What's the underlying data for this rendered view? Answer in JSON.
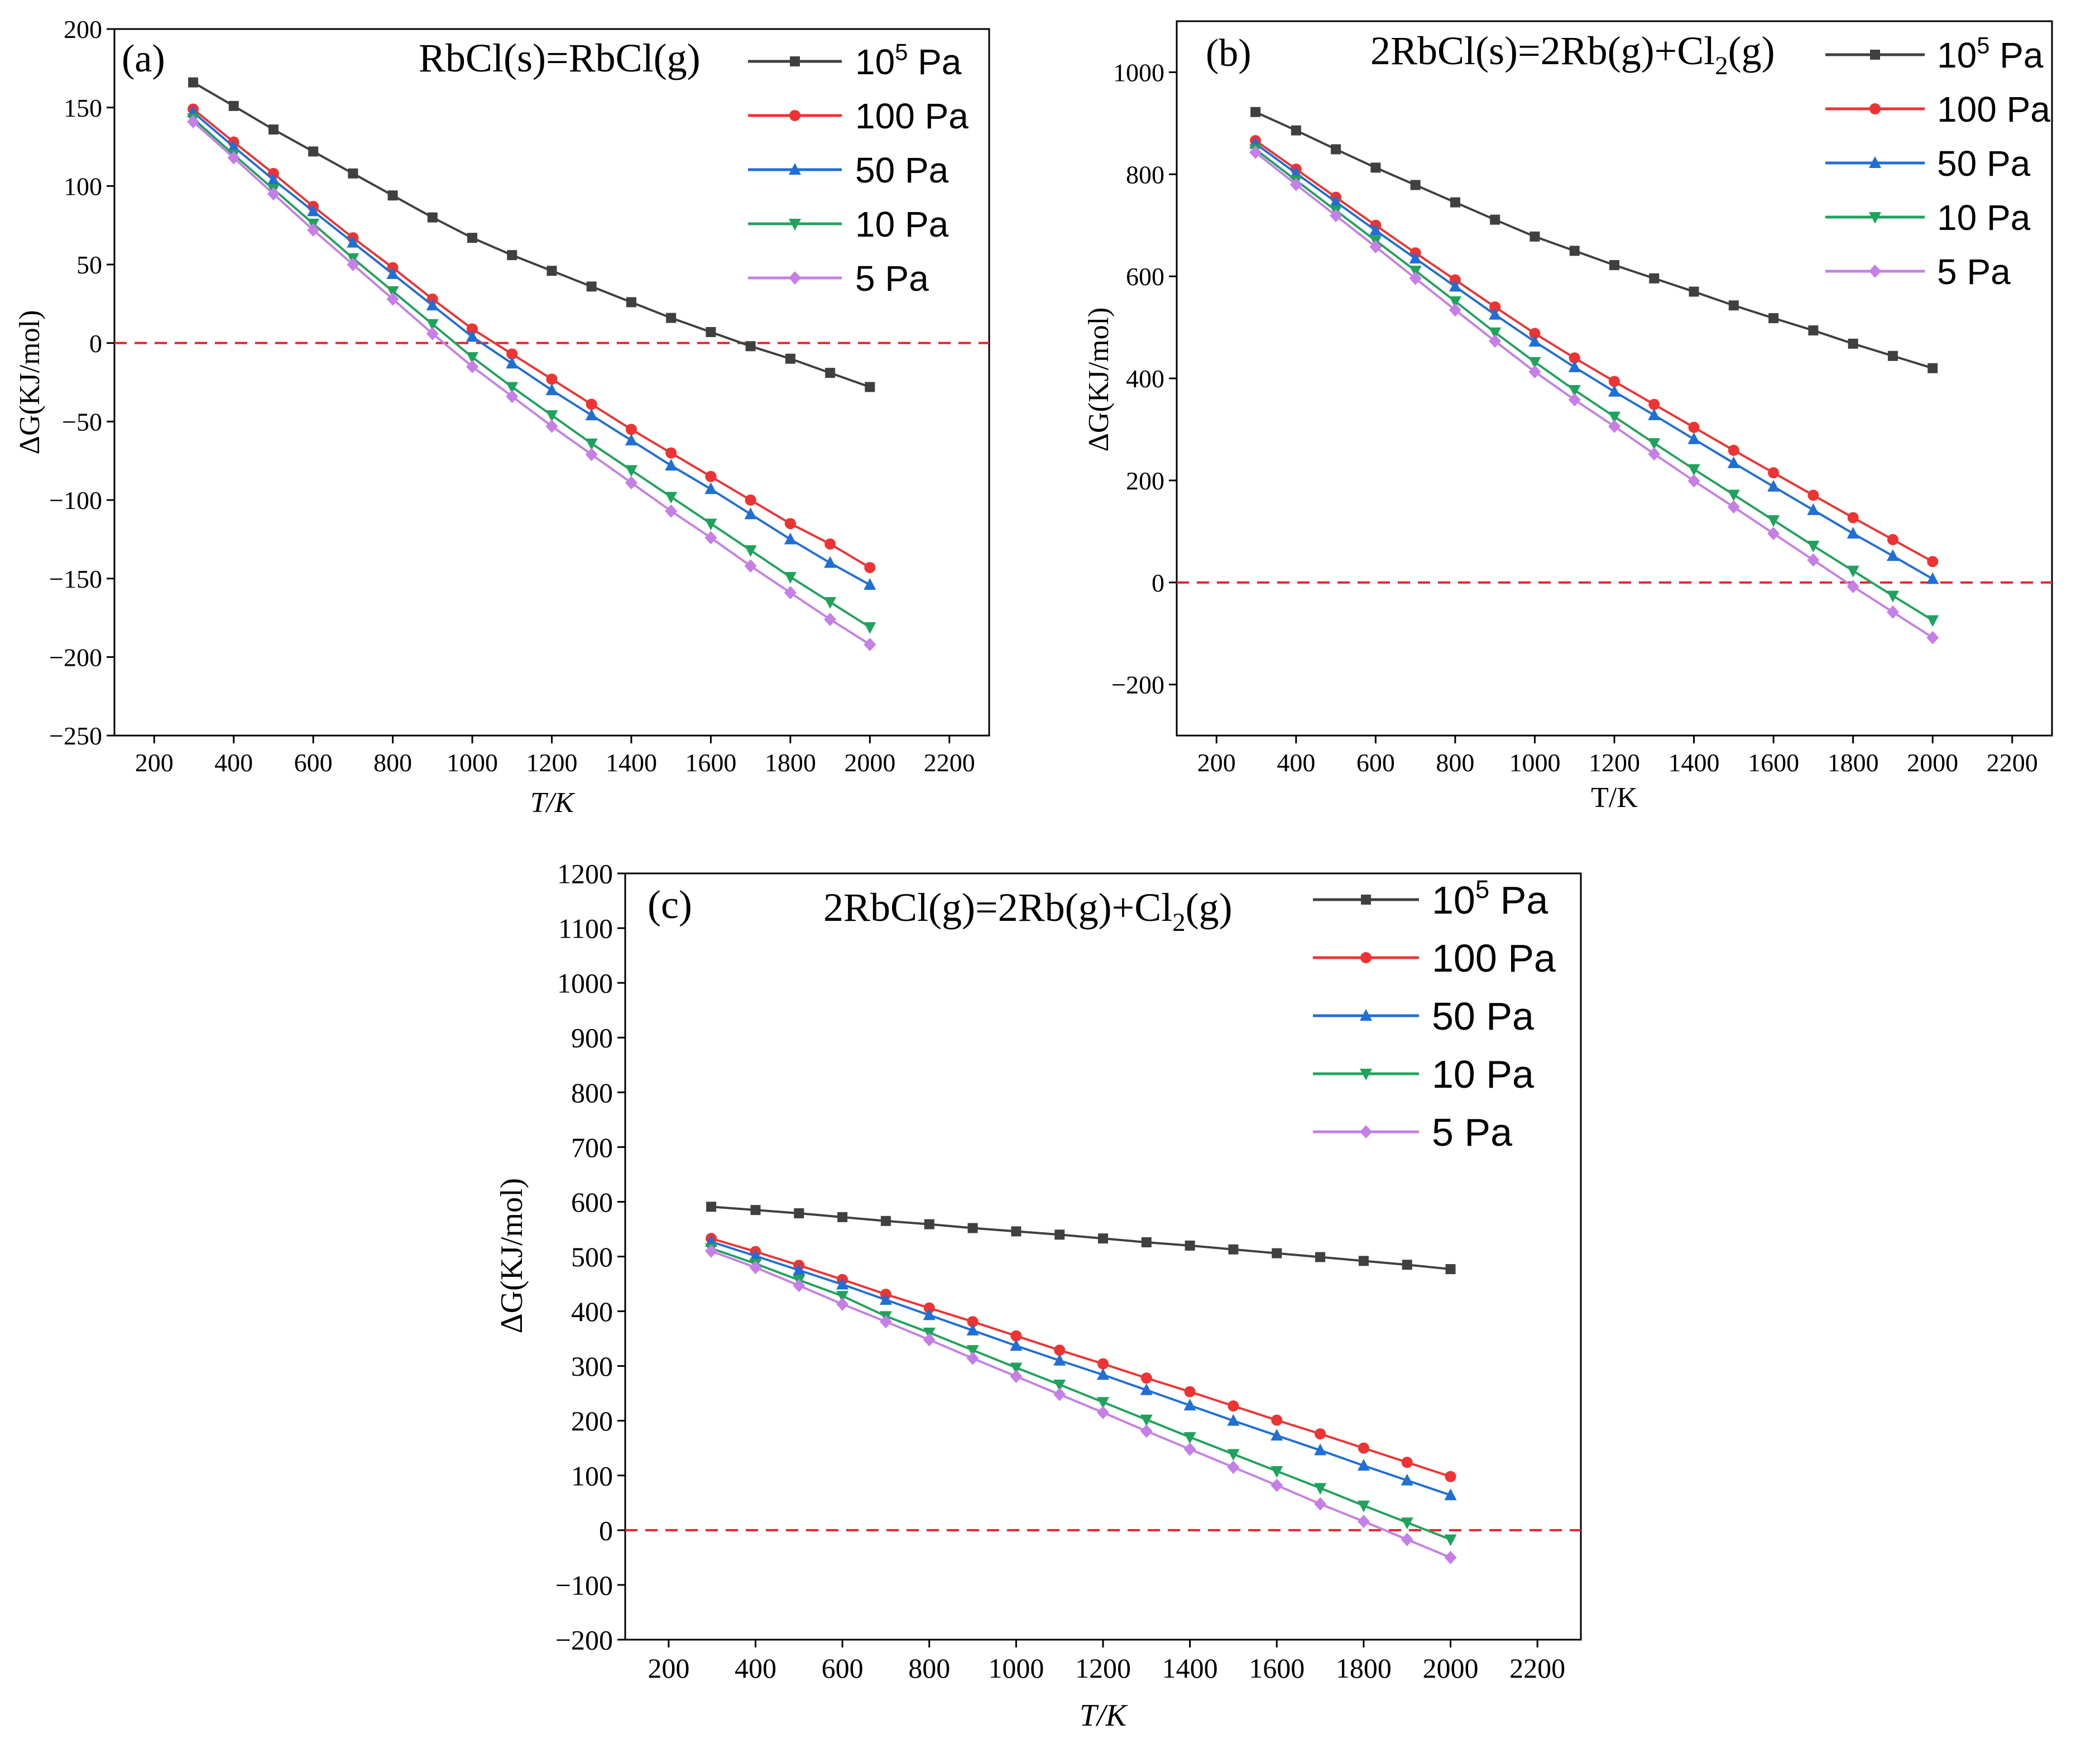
{
  "figure": {
    "panel_labels": [
      "(a)",
      "(b)",
      "(c)"
    ]
  },
  "chart_data": [
    {
      "type": "line",
      "panel_label": "(a)",
      "reaction": "RbCl(s)=RbCl(g)",
      "xlabel": "T/K",
      "ylabel": "ΔG(KJ/mol)",
      "xlim": [
        100,
        2300
      ],
      "ylim": [
        -250,
        200
      ],
      "xticks": [
        200,
        400,
        600,
        800,
        1000,
        1200,
        1400,
        1600,
        1800,
        2000,
        2200
      ],
      "yticks": [
        -250,
        -200,
        -150,
        -100,
        -50,
        0,
        50,
        100,
        150,
        200
      ],
      "reference_line": 0,
      "x": [
        298,
        400,
        500,
        600,
        700,
        800,
        900,
        1000,
        1100,
        1200,
        1300,
        1400,
        1500,
        1600,
        1700,
        1800,
        1900,
        2000
      ],
      "series": [
        {
          "name": "10^5 Pa",
          "base": "10",
          "sup": "5",
          "unit": "Pa",
          "color": "#404040",
          "marker": "square",
          "values": [
            166,
            151,
            136,
            122,
            108,
            94,
            80,
            67,
            56,
            46,
            36,
            26,
            16,
            7,
            -2,
            -10,
            -19,
            -28
          ]
        },
        {
          "name": "100 Pa",
          "color": "#ee3333",
          "marker": "circle",
          "values": [
            149,
            128,
            108,
            87,
            67,
            48,
            28,
            9,
            -7,
            -23,
            -39,
            -55,
            -70,
            -85,
            -100,
            -115,
            -128,
            -143
          ]
        },
        {
          "name": "50 Pa",
          "color": "#1f6fd6",
          "marker": "triangle-up",
          "values": [
            147,
            125,
            104,
            84,
            64,
            44,
            24,
            4,
            -13,
            -30,
            -46,
            -62,
            -78,
            -93,
            -109,
            -125,
            -140,
            -154
          ]
        },
        {
          "name": "10 Pa",
          "color": "#1fa35c",
          "marker": "triangle-down",
          "values": [
            143,
            120,
            98,
            76,
            54,
            33,
            12,
            -9,
            -28,
            -46,
            -64,
            -81,
            -98,
            -115,
            -132,
            -149,
            -165,
            -181
          ]
        },
        {
          "name": "5 Pa",
          "color": "#c57fe6",
          "marker": "diamond",
          "values": [
            141,
            118,
            95,
            72,
            50,
            28,
            6,
            -15,
            -34,
            -53,
            -71,
            -89,
            -107,
            -124,
            -142,
            -159,
            -176,
            -192
          ]
        }
      ]
    },
    {
      "type": "line",
      "panel_label": "(b)",
      "reaction": "2RbCl(s)=2Rb(g)+Cl2(g)",
      "reaction_parts": [
        "2RbCl(s)=2Rb(g)+Cl",
        "2",
        "(g)"
      ],
      "xlabel": "T/K",
      "ylabel": "ΔG(KJ/mol)",
      "xlim": [
        100,
        2300
      ],
      "ylim": [
        -300,
        1100
      ],
      "xticks": [
        200,
        400,
        600,
        800,
        1000,
        1200,
        1400,
        1600,
        1800,
        2000,
        2200
      ],
      "yticks": [
        -200,
        0,
        200,
        400,
        600,
        800,
        1000
      ],
      "reference_line": 0,
      "x": [
        298,
        400,
        500,
        600,
        700,
        800,
        900,
        1000,
        1100,
        1200,
        1300,
        1400,
        1500,
        1600,
        1700,
        1800,
        1900,
        2000
      ],
      "series": [
        {
          "name": "10^5 Pa",
          "base": "10",
          "sup": "5",
          "unit": "Pa",
          "color": "#404040",
          "marker": "square",
          "values": [
            922,
            886,
            849,
            813,
            779,
            745,
            711,
            678,
            650,
            622,
            596,
            570,
            543,
            518,
            494,
            468,
            444,
            420
          ]
        },
        {
          "name": "100 Pa",
          "color": "#ee3333",
          "marker": "circle",
          "values": [
            866,
            810,
            755,
            700,
            646,
            593,
            540,
            488,
            440,
            394,
            349,
            304,
            259,
            215,
            171,
            127,
            84,
            41
          ]
        },
        {
          "name": "50 Pa",
          "color": "#1f6fd6",
          "marker": "triangle-up",
          "values": [
            860,
            802,
            746,
            690,
            635,
            580,
            525,
            472,
            422,
            374,
            328,
            281,
            234,
            188,
            142,
            96,
            52,
            7
          ]
        },
        {
          "name": "10 Pa",
          "color": "#1fa35c",
          "marker": "triangle-down",
          "values": [
            849,
            788,
            729,
            670,
            611,
            551,
            490,
            432,
            377,
            325,
            273,
            222,
            172,
            122,
            72,
            23,
            -26,
            -74
          ]
        },
        {
          "name": "5 Pa",
          "color": "#c57fe6",
          "marker": "diamond",
          "values": [
            843,
            780,
            719,
            658,
            596,
            534,
            473,
            413,
            358,
            306,
            252,
            199,
            148,
            96,
            44,
            -8,
            -58,
            -108
          ]
        }
      ]
    },
    {
      "type": "line",
      "panel_label": "(c)",
      "reaction": "2RbCl(g)=2Rb(g)+Cl2(g)",
      "reaction_parts": [
        "2RbCl(g)=2Rb(g)+Cl",
        "2",
        "(g)"
      ],
      "xlabel": "T/K",
      "ylabel": "ΔG(KJ/mol)",
      "xlim": [
        100,
        2300
      ],
      "ylim": [
        -200,
        1200
      ],
      "xticks": [
        200,
        400,
        600,
        800,
        1000,
        1200,
        1400,
        1600,
        1800,
        2000,
        2200
      ],
      "yticks": [
        -200,
        -100,
        0,
        100,
        200,
        300,
        400,
        500,
        600,
        700,
        800,
        900,
        1000,
        1100,
        1200
      ],
      "reference_line": 0,
      "x": [
        298,
        400,
        500,
        600,
        700,
        800,
        900,
        1000,
        1100,
        1200,
        1300,
        1400,
        1500,
        1600,
        1700,
        1800,
        1900,
        2000
      ],
      "series": [
        {
          "name": "10^5 Pa",
          "base": "10",
          "sup": "5",
          "unit": "Pa",
          "color": "#404040",
          "marker": "square",
          "values": [
            591,
            585,
            579,
            572,
            565,
            559,
            552,
            546,
            540,
            533,
            526,
            520,
            513,
            506,
            499,
            492,
            485,
            477
          ]
        },
        {
          "name": "100 Pa",
          "color": "#ee3333",
          "marker": "circle",
          "values": [
            533,
            509,
            484,
            458,
            431,
            406,
            381,
            355,
            329,
            304,
            278,
            253,
            227,
            201,
            176,
            150,
            124,
            98
          ]
        },
        {
          "name": "50 Pa",
          "color": "#1f6fd6",
          "marker": "triangle-up",
          "values": [
            527,
            501,
            475,
            449,
            421,
            393,
            365,
            337,
            310,
            284,
            256,
            228,
            200,
            173,
            146,
            118,
            91,
            64
          ]
        },
        {
          "name": "10 Pa",
          "color": "#1fa35c",
          "marker": "triangle-down",
          "values": [
            515,
            487,
            457,
            428,
            391,
            361,
            329,
            297,
            266,
            234,
            202,
            170,
            139,
            108,
            77,
            45,
            14,
            -17
          ]
        },
        {
          "name": "5 Pa",
          "color": "#c57fe6",
          "marker": "diamond",
          "values": [
            510,
            480,
            447,
            413,
            381,
            348,
            314,
            281,
            248,
            215,
            181,
            148,
            115,
            82,
            48,
            16,
            -17,
            -50
          ]
        }
      ]
    }
  ]
}
